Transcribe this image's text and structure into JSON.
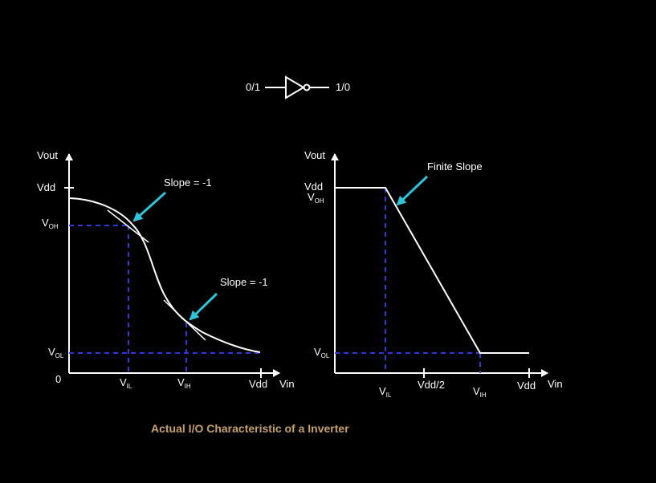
{
  "inverter": {
    "input_label": "0/1",
    "output_label": "1/0"
  },
  "left_plot": {
    "y_axis_label": "Vout",
    "vdd_label": "Vdd",
    "voh_label": "V",
    "voh_sub": "OH",
    "vol_label": "V",
    "vol_sub": "OL",
    "origin_label": "0",
    "vil_label": "V",
    "vil_sub": "IL",
    "vih_label": "V",
    "vih_sub": "IH",
    "vdd_x_label": "Vdd",
    "x_axis_label": "Vin",
    "slope_top_label": "Slope = -1",
    "slope_bottom_label": "Slope = -1"
  },
  "right_plot": {
    "y_axis_label": "Vout",
    "vdd_label": "Vdd",
    "voh_label": "V",
    "voh_sub": "OH",
    "vol_label": "V",
    "vol_sub": "OL",
    "vil_label": "V",
    "vil_sub": "IL",
    "vdd_half_label": "Vdd/2",
    "vih_label": "V",
    "vih_sub": "IH",
    "vdd_x_label": "Vdd",
    "x_axis_label": "Vin",
    "finite_slope_label": "Finite Slope"
  },
  "caption": "Actual I/O Characteristic of a Inverter",
  "colors": {
    "background": "#000000",
    "foreground": "#ffffff",
    "guide_lines": "#2a3bd8",
    "pointer_arrows": "#2ec3d6",
    "caption": "#c8a06a"
  }
}
